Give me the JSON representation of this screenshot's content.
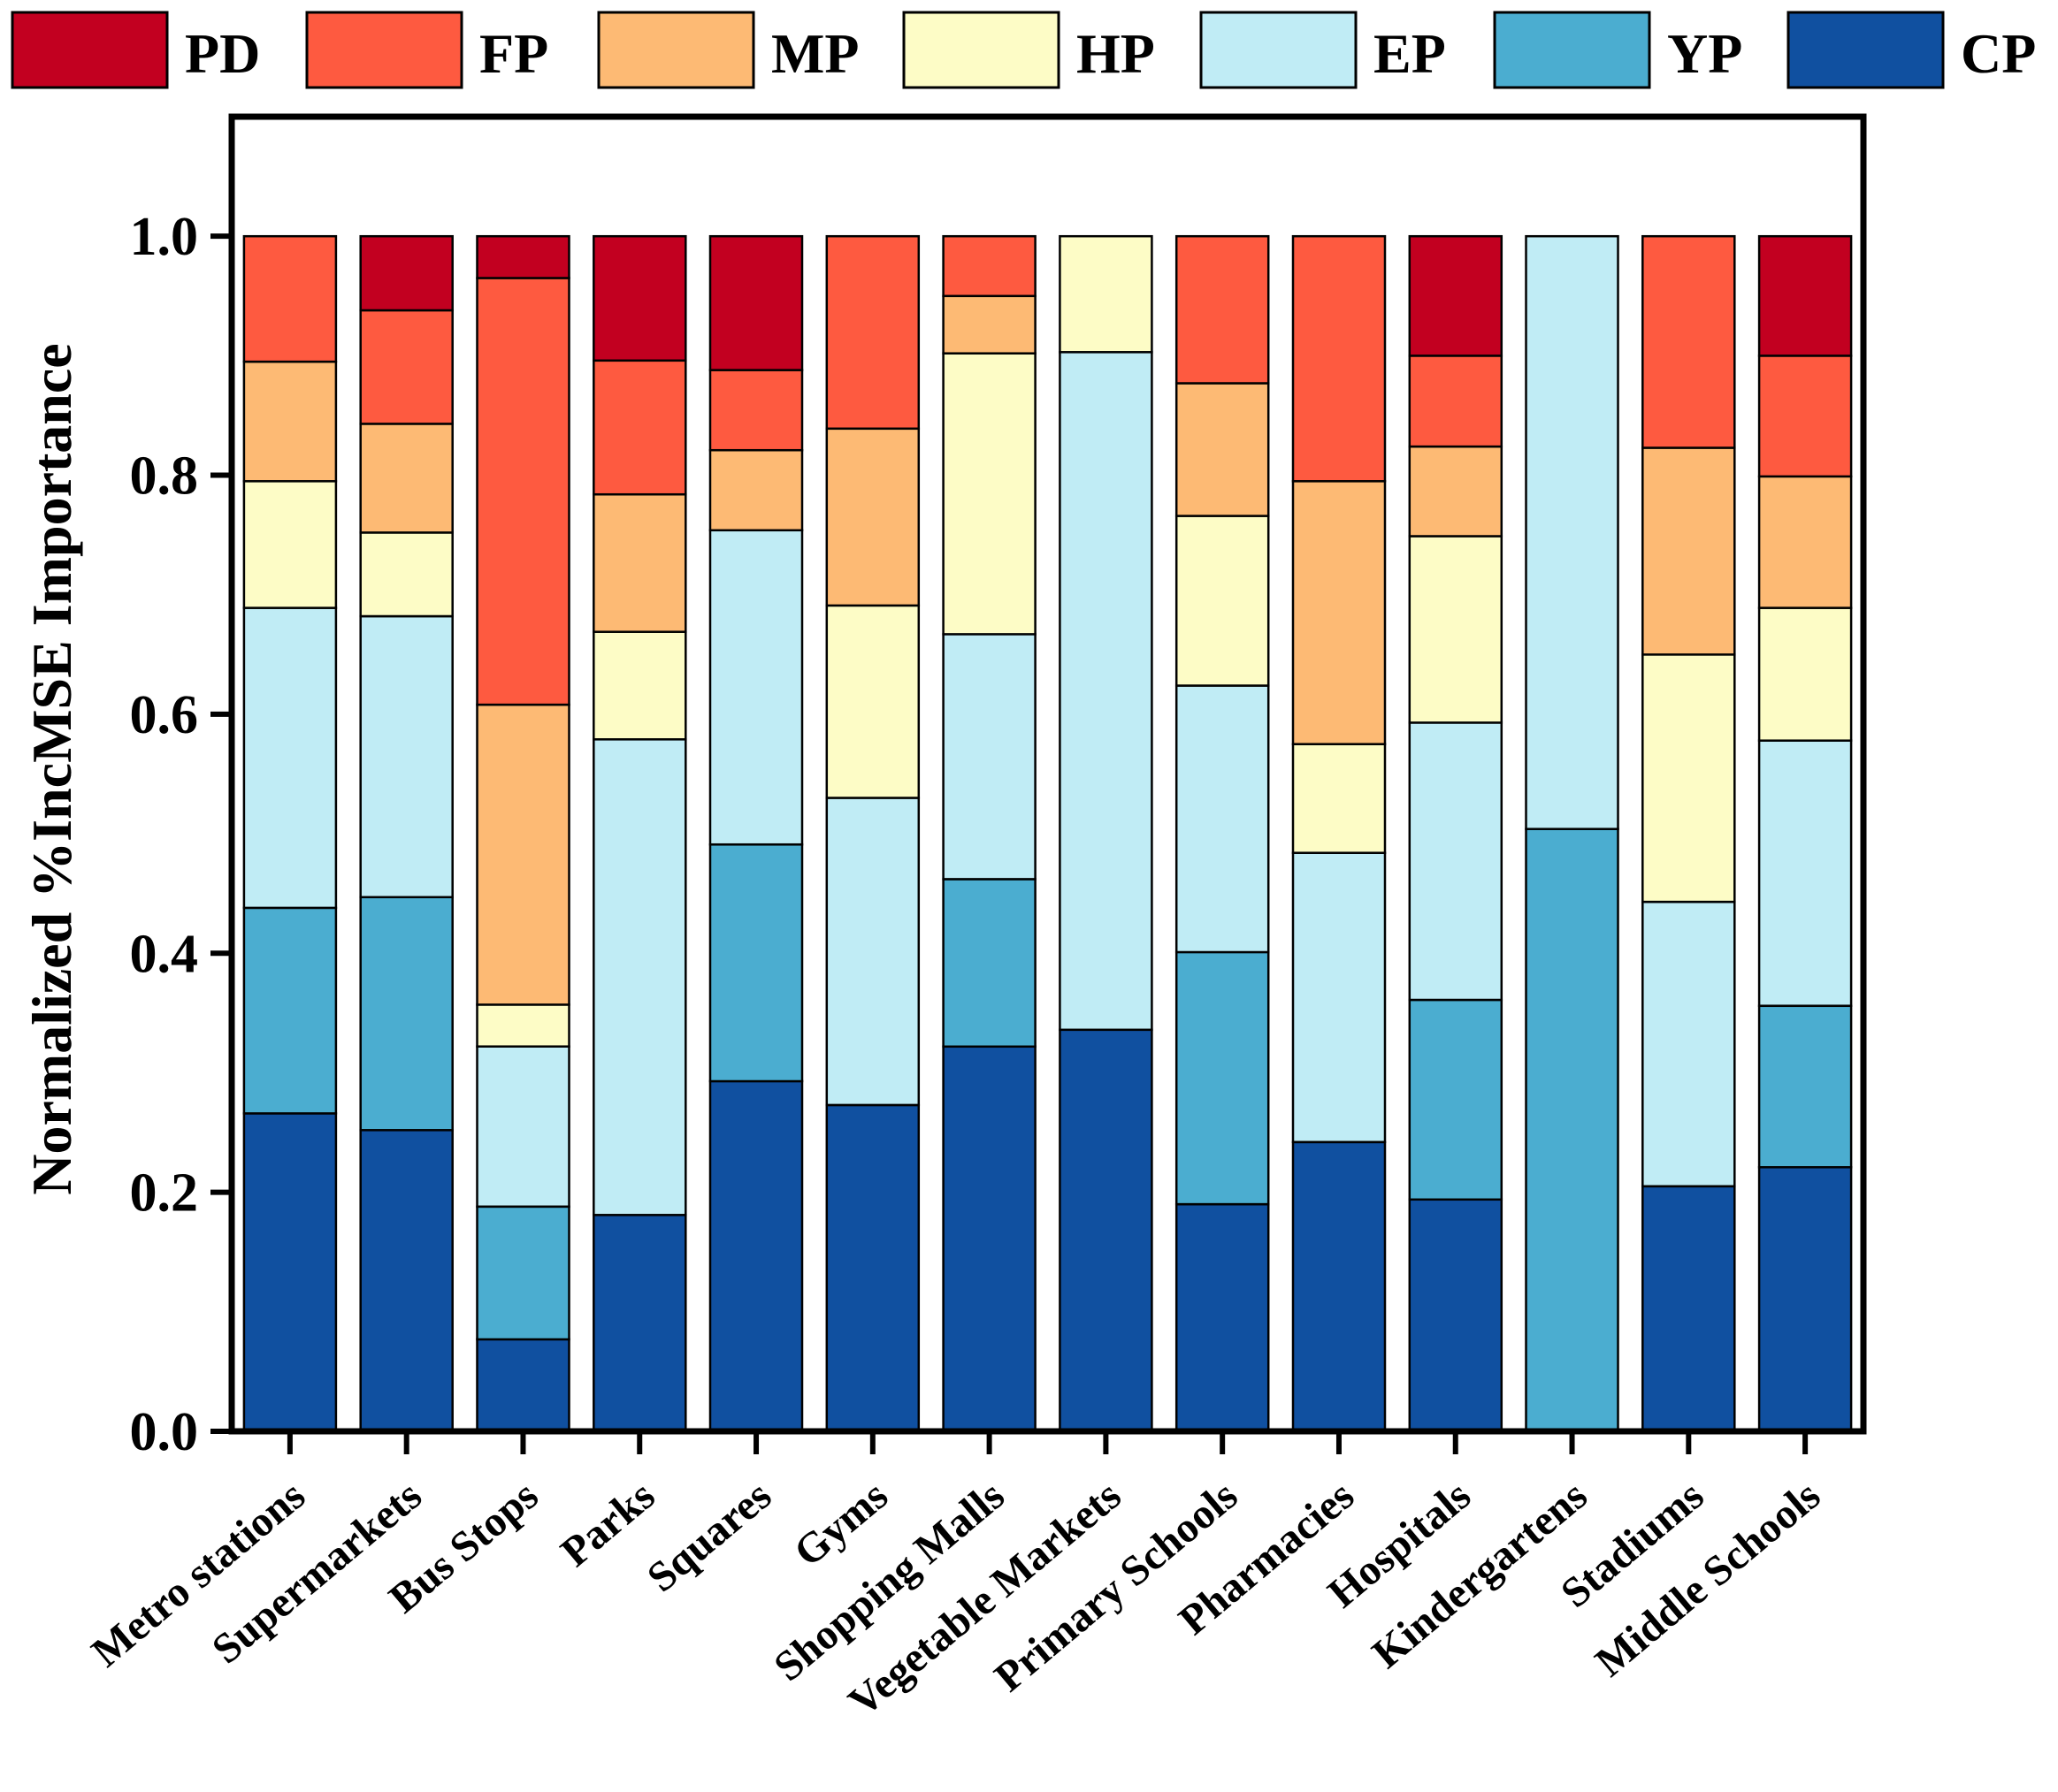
{
  "chart_data": {
    "type": "bar",
    "stacked": true,
    "title": "",
    "xlabel": "",
    "ylabel": "Normalized %IncMSE Importance",
    "ylim": [
      0,
      1.1
    ],
    "yticks": [
      "0.0",
      "0.2",
      "0.4",
      "0.6",
      "0.8",
      "1.0"
    ],
    "legend_position": "top",
    "categories": [
      "Metro stations",
      "Supermarkets",
      "Bus Stops",
      "Parks",
      "Squares",
      "Gyms",
      "Shopping Malls",
      "Vegetable Markets",
      "Primary Schools",
      "Pharmacies",
      "Hospitals",
      "Kindergartens",
      "Stadiums",
      "Middle Schools"
    ],
    "series": [
      {
        "name": "CP",
        "color": "#1050a0",
        "values": [
          0.266,
          0.252,
          0.077,
          0.181,
          0.293,
          0.273,
          0.322,
          0.336,
          0.19,
          0.242,
          0.194,
          0.0,
          0.205,
          0.221
        ]
      },
      {
        "name": "YP",
        "color": "#4badd0",
        "values": [
          0.172,
          0.195,
          0.111,
          0.0,
          0.198,
          0.0,
          0.14,
          0.0,
          0.211,
          0.0,
          0.167,
          0.504,
          0.0,
          0.135
        ]
      },
      {
        "name": "EP",
        "color": "#c0ecf5",
        "values": [
          0.251,
          0.235,
          0.134,
          0.398,
          0.263,
          0.257,
          0.205,
          0.567,
          0.223,
          0.242,
          0.232,
          0.496,
          0.238,
          0.222
        ]
      },
      {
        "name": "HP",
        "color": "#fdfcc6",
        "values": [
          0.106,
          0.07,
          0.035,
          0.09,
          0.0,
          0.161,
          0.235,
          0.097,
          0.142,
          0.091,
          0.156,
          0.0,
          0.207,
          0.111
        ]
      },
      {
        "name": "MP",
        "color": "#fdba74",
        "values": [
          0.1,
          0.091,
          0.251,
          0.115,
          0.067,
          0.148,
          0.048,
          0.0,
          0.111,
          0.22,
          0.075,
          0.0,
          0.173,
          0.11
        ]
      },
      {
        "name": "FP",
        "color": "#fe5a40",
        "values": [
          0.105,
          0.095,
          0.357,
          0.112,
          0.067,
          0.161,
          0.05,
          0.0,
          0.123,
          0.205,
          0.076,
          0.0,
          0.177,
          0.101
        ]
      },
      {
        "name": "PD",
        "color": "#c20020",
        "values": [
          0.0,
          0.062,
          0.035,
          0.104,
          0.112,
          0.0,
          0.0,
          0.0,
          0.0,
          0.0,
          0.1,
          0.0,
          0.0,
          0.1
        ]
      }
    ],
    "legend_order": [
      "PD",
      "FP",
      "MP",
      "HP",
      "EP",
      "YP",
      "CP"
    ]
  }
}
